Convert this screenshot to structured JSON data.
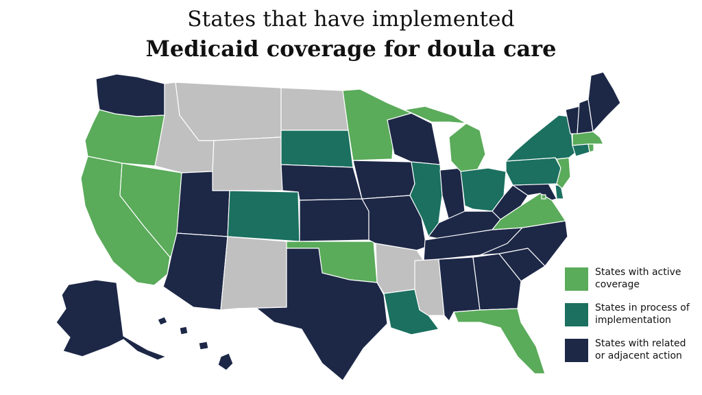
{
  "title_line1": "States that have implemented",
  "title_line2": "Medicaid coverage for doula care",
  "colors": {
    "active": "#5aab5a",
    "process": "#1b7060",
    "related": "#1d2847",
    "none": "#c0c0c0"
  },
  "legend": [
    {
      "key": "active",
      "label": "States with active coverage"
    },
    {
      "key": "process",
      "label": "States in process of implementation"
    },
    {
      "key": "related",
      "label": "States with related or adjacent action"
    }
  ],
  "states": {
    "active": [
      "Oregon",
      "California",
      "Nevada",
      "Minnesota",
      "Michigan",
      "Oklahoma",
      "Virginia",
      "New Jersey",
      "Rhode Island",
      "Massachusetts",
      "Florida",
      "Washington D.C."
    ],
    "process": [
      "South Dakota",
      "Colorado",
      "Illinois",
      "Ohio",
      "Pennsylvania",
      "New York",
      "Connecticut",
      "Louisiana",
      "Delaware"
    ],
    "related": [
      "Washington",
      "Utah",
      "Arizona",
      "Nebraska",
      "Kansas",
      "Texas",
      "Iowa",
      "Missouri",
      "Wisconsin",
      "Indiana",
      "Kentucky",
      "Tennessee",
      "Alabama",
      "Georgia",
      "North Carolina",
      "South Carolina",
      "West Virginia",
      "Maryland",
      "Vermont",
      "New Hampshire",
      "Maine",
      "Alaska",
      "Hawaii"
    ],
    "none": [
      "Idaho",
      "Montana",
      "Wyoming",
      "North Dakota",
      "New Mexico",
      "Arkansas",
      "Mississippi"
    ]
  }
}
